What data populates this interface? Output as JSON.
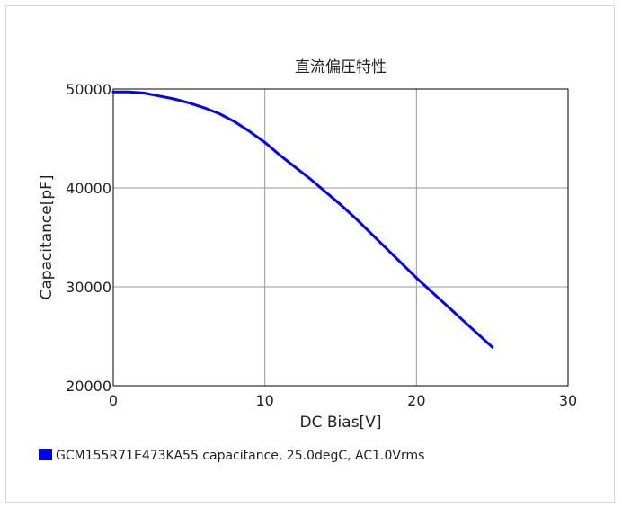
{
  "chart_data": {
    "type": "line",
    "title": "直流偏圧特性",
    "xlabel": "DC Bias[V]",
    "ylabel": "Capacitance[pF]",
    "xlim": [
      0,
      30
    ],
    "ylim": [
      20000,
      50000
    ],
    "xticks": [
      0,
      10,
      20,
      30
    ],
    "yticks": [
      20000,
      30000,
      40000,
      50000
    ],
    "xtick_labels": [
      "0",
      "10",
      "20",
      "30"
    ],
    "ytick_labels": [
      "20000",
      "30000",
      "40000",
      "50000"
    ],
    "grid": true,
    "legend_position": "bottom-left",
    "series": [
      {
        "name": "GCM155R71E473KA55 capacitance, 25.0degC, AC1.0Vrms",
        "color": "#0000ff",
        "x": [
          0,
          1,
          2,
          3,
          4,
          5,
          6,
          7,
          8,
          9,
          10,
          11,
          12,
          13,
          14,
          15,
          16,
          17,
          18,
          19,
          20,
          21,
          22,
          23,
          24,
          25
        ],
        "y": [
          49700,
          49700,
          49600,
          49300,
          49000,
          48600,
          48100,
          47500,
          46700,
          45700,
          44600,
          43300,
          42100,
          40900,
          39600,
          38300,
          36900,
          35400,
          33900,
          32400,
          30900,
          29500,
          28100,
          26700,
          25300,
          23900
        ]
      }
    ]
  }
}
